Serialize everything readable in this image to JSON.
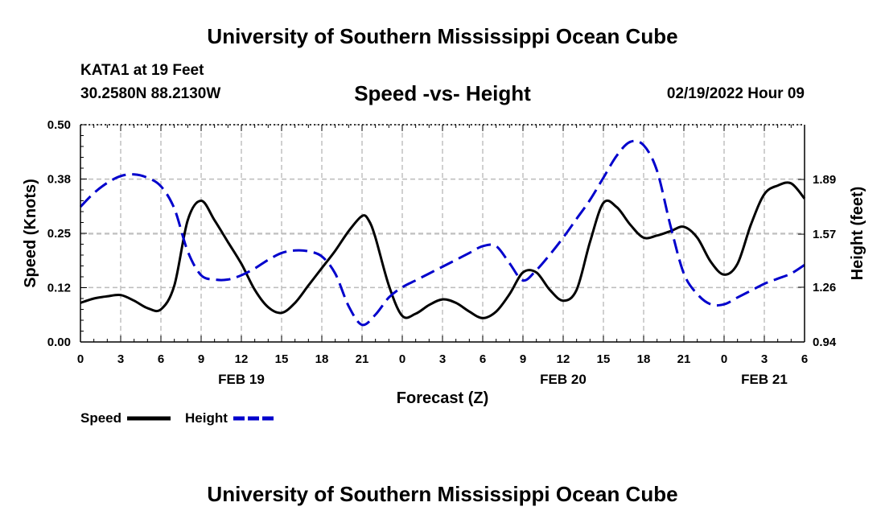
{
  "header": {
    "title": "University of Southern Mississippi Ocean Cube",
    "station": "KATA1 at 19 Feet",
    "coords": "30.2580N  88.2130W",
    "subtitle": "Speed -vs- Height",
    "datetime": "02/19/2022 Hour 09",
    "footer_title": "University of Southern Mississippi Ocean Cube"
  },
  "chart_data": {
    "type": "line",
    "title": "Speed -vs- Height",
    "xlabel": "Forecast (Z)",
    "ylabel_left": "Speed (Knots)",
    "ylabel_right": "Height (feet)",
    "x_range": [
      0,
      54
    ],
    "x_tick_hours": [
      0,
      3,
      6,
      9,
      12,
      15,
      18,
      21,
      24,
      27,
      30,
      33,
      36,
      39,
      42,
      45,
      48,
      51,
      54
    ],
    "x_tick_labels": [
      "0",
      "3",
      "6",
      "9",
      "12",
      "15",
      "18",
      "21",
      "0",
      "3",
      "6",
      "9",
      "12",
      "15",
      "18",
      "21",
      "0",
      "3",
      "6"
    ],
    "date_labels": [
      {
        "hour": 12,
        "label": "FEB 19"
      },
      {
        "hour": 36,
        "label": "FEB 20"
      },
      {
        "hour": 51,
        "label": "FEB 21"
      }
    ],
    "y_left": {
      "range": [
        0,
        0.5
      ],
      "ticks": [
        0.0,
        0.125,
        0.25,
        0.375,
        0.5
      ],
      "tick_labels": [
        "0.00",
        "0.12",
        "0.25",
        "0.38",
        "0.50"
      ]
    },
    "y_right": {
      "range": [
        0.94,
        2.21
      ],
      "ticks": [
        0.94,
        1.26,
        1.57,
        1.89
      ],
      "tick_labels": [
        "0.94",
        "1.26",
        "1.57",
        "1.89"
      ]
    },
    "series": [
      {
        "name": "Speed",
        "axis": "left",
        "color": "#000000",
        "dash": "solid",
        "points": [
          [
            0,
            0.09
          ],
          [
            1,
            0.1
          ],
          [
            2,
            0.105
          ],
          [
            3,
            0.108
          ],
          [
            4,
            0.095
          ],
          [
            5,
            0.078
          ],
          [
            6,
            0.075
          ],
          [
            7,
            0.13
          ],
          [
            8,
            0.28
          ],
          [
            9,
            0.325
          ],
          [
            10,
            0.28
          ],
          [
            11,
            0.23
          ],
          [
            12,
            0.18
          ],
          [
            13,
            0.12
          ],
          [
            14,
            0.08
          ],
          [
            15,
            0.067
          ],
          [
            16,
            0.09
          ],
          [
            17,
            0.13
          ],
          [
            18,
            0.17
          ],
          [
            19,
            0.21
          ],
          [
            20,
            0.255
          ],
          [
            21,
            0.29
          ],
          [
            21.5,
            0.28
          ],
          [
            22,
            0.24
          ],
          [
            23,
            0.13
          ],
          [
            24,
            0.06
          ],
          [
            25,
            0.065
          ],
          [
            26,
            0.085
          ],
          [
            27,
            0.098
          ],
          [
            28,
            0.09
          ],
          [
            29,
            0.07
          ],
          [
            30,
            0.055
          ],
          [
            31,
            0.07
          ],
          [
            32,
            0.11
          ],
          [
            33,
            0.16
          ],
          [
            34,
            0.16
          ],
          [
            35,
            0.12
          ],
          [
            36,
            0.095
          ],
          [
            37,
            0.12
          ],
          [
            38,
            0.23
          ],
          [
            39,
            0.32
          ],
          [
            40,
            0.31
          ],
          [
            41,
            0.27
          ],
          [
            42,
            0.24
          ],
          [
            43,
            0.245
          ],
          [
            44,
            0.255
          ],
          [
            45,
            0.265
          ],
          [
            46,
            0.24
          ],
          [
            47,
            0.185
          ],
          [
            48,
            0.155
          ],
          [
            49,
            0.18
          ],
          [
            50,
            0.27
          ],
          [
            51,
            0.34
          ],
          [
            52,
            0.36
          ],
          [
            53,
            0.365
          ],
          [
            54,
            0.33
          ]
        ]
      },
      {
        "name": "Height",
        "axis": "right",
        "color": "#0000cc",
        "dash": "dashed",
        "points": [
          [
            0,
            1.73
          ],
          [
            1,
            1.81
          ],
          [
            2,
            1.87
          ],
          [
            3,
            1.91
          ],
          [
            4,
            1.92
          ],
          [
            5,
            1.9
          ],
          [
            6,
            1.85
          ],
          [
            7,
            1.72
          ],
          [
            8,
            1.47
          ],
          [
            9,
            1.33
          ],
          [
            10,
            1.305
          ],
          [
            11,
            1.305
          ],
          [
            12,
            1.33
          ],
          [
            13,
            1.37
          ],
          [
            14,
            1.42
          ],
          [
            15,
            1.46
          ],
          [
            16,
            1.475
          ],
          [
            17,
            1.47
          ],
          [
            18,
            1.44
          ],
          [
            19,
            1.34
          ],
          [
            20,
            1.15
          ],
          [
            21,
            1.04
          ],
          [
            22,
            1.1
          ],
          [
            23,
            1.2
          ],
          [
            24,
            1.26
          ],
          [
            25,
            1.3
          ],
          [
            26,
            1.34
          ],
          [
            27,
            1.38
          ],
          [
            28,
            1.42
          ],
          [
            29,
            1.46
          ],
          [
            30,
            1.5
          ],
          [
            31,
            1.5
          ],
          [
            32,
            1.4
          ],
          [
            33,
            1.3
          ],
          [
            34,
            1.36
          ],
          [
            35,
            1.45
          ],
          [
            36,
            1.55
          ],
          [
            37,
            1.66
          ],
          [
            38,
            1.77
          ],
          [
            39,
            1.9
          ],
          [
            40,
            2.03
          ],
          [
            41,
            2.11
          ],
          [
            42,
            2.09
          ],
          [
            43,
            1.94
          ],
          [
            44,
            1.62
          ],
          [
            45,
            1.34
          ],
          [
            46,
            1.22
          ],
          [
            47,
            1.16
          ],
          [
            48,
            1.16
          ],
          [
            49,
            1.2
          ],
          [
            50,
            1.24
          ],
          [
            51,
            1.28
          ],
          [
            52,
            1.31
          ],
          [
            53,
            1.34
          ],
          [
            54,
            1.39
          ]
        ]
      }
    ],
    "legend": [
      {
        "label": "Speed",
        "color": "#000000",
        "dash": "solid"
      },
      {
        "label": "Height",
        "color": "#0000cc",
        "dash": "dashed"
      }
    ]
  }
}
